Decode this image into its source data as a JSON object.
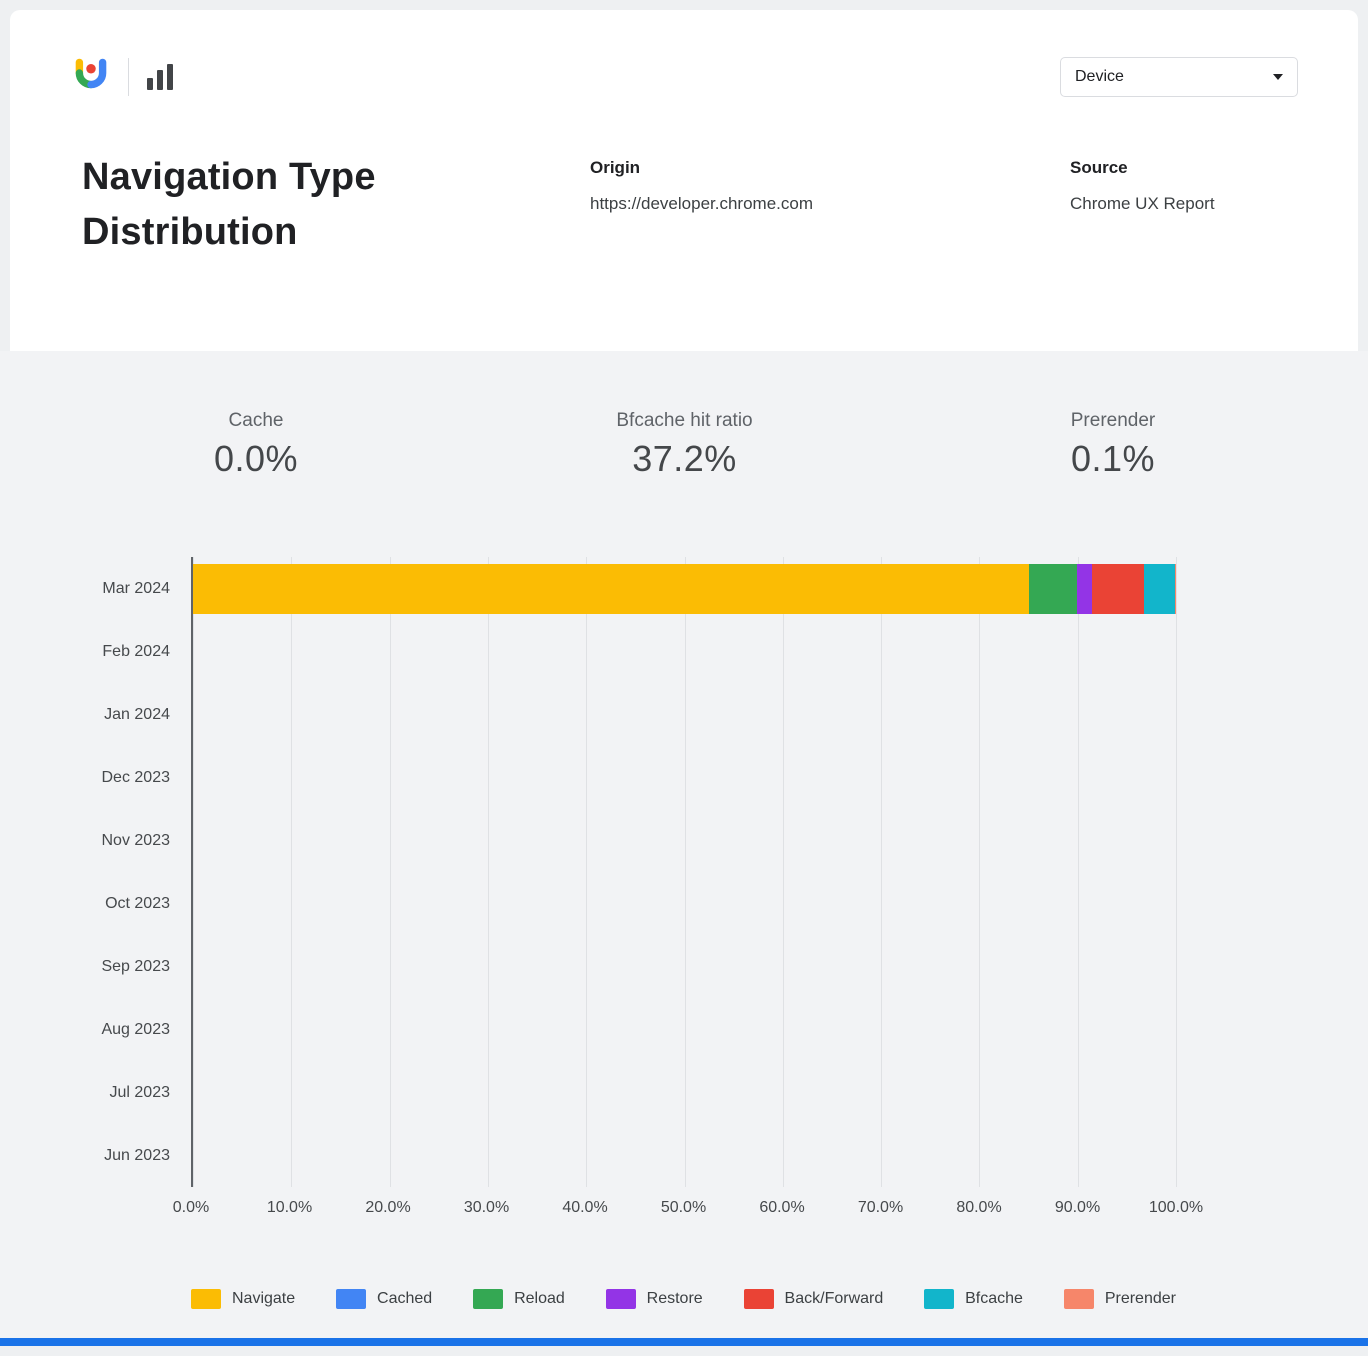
{
  "header": {
    "logo_name": "crux-logo",
    "device_dropdown": {
      "label": "Device"
    }
  },
  "title": "Navigation Type Distribution",
  "origin": {
    "label": "Origin",
    "value": "https://developer.chrome.com"
  },
  "source": {
    "label": "Source",
    "value": "Chrome UX Report"
  },
  "kpis": [
    {
      "label": "Cache",
      "value": "0.0%"
    },
    {
      "label": "Bfcache hit ratio",
      "value": "37.2%"
    },
    {
      "label": "Prerender",
      "value": "0.1%"
    }
  ],
  "colors": {
    "navigate": "#fbbc04",
    "cached": "#4285f4",
    "reload": "#34a853",
    "restore": "#9334e6",
    "back_forward": "#ea4335",
    "bfcache": "#12b5cb",
    "prerender": "#f6866a",
    "footer": "#1a73e8"
  },
  "chart_data": {
    "type": "bar",
    "orientation": "horizontal-stacked",
    "title": "Navigation Type Distribution",
    "categories": [
      "Mar 2024",
      "Feb 2024",
      "Jan 2024",
      "Dec 2023",
      "Nov 2023",
      "Oct 2023",
      "Sep 2023",
      "Aug 2023",
      "Jul 2023",
      "Jun 2023"
    ],
    "series": [
      {
        "name": "Navigate",
        "color": "#fbbc04",
        "values": [
          85.0,
          0,
          0,
          0,
          0,
          0,
          0,
          0,
          0,
          0
        ]
      },
      {
        "name": "Cached",
        "color": "#4285f4",
        "values": [
          0.0,
          0,
          0,
          0,
          0,
          0,
          0,
          0,
          0,
          0
        ]
      },
      {
        "name": "Reload",
        "color": "#34a853",
        "values": [
          4.9,
          0,
          0,
          0,
          0,
          0,
          0,
          0,
          0,
          0
        ]
      },
      {
        "name": "Restore",
        "color": "#9334e6",
        "values": [
          1.6,
          0,
          0,
          0,
          0,
          0,
          0,
          0,
          0,
          0
        ]
      },
      {
        "name": "Back/Forward",
        "color": "#ea4335",
        "values": [
          5.2,
          0,
          0,
          0,
          0,
          0,
          0,
          0,
          0,
          0
        ]
      },
      {
        "name": "Bfcache",
        "color": "#12b5cb",
        "values": [
          3.2,
          0,
          0,
          0,
          0,
          0,
          0,
          0,
          0,
          0
        ]
      },
      {
        "name": "Prerender",
        "color": "#f6866a",
        "values": [
          0.1,
          0,
          0,
          0,
          0,
          0,
          0,
          0,
          0,
          0
        ]
      }
    ],
    "x_ticks": [
      "0.0%",
      "10.0%",
      "20.0%",
      "30.0%",
      "40.0%",
      "50.0%",
      "60.0%",
      "70.0%",
      "80.0%",
      "90.0%",
      "100.0%"
    ],
    "xlim": [
      0,
      100
    ],
    "grid": true,
    "legend_position": "bottom"
  }
}
